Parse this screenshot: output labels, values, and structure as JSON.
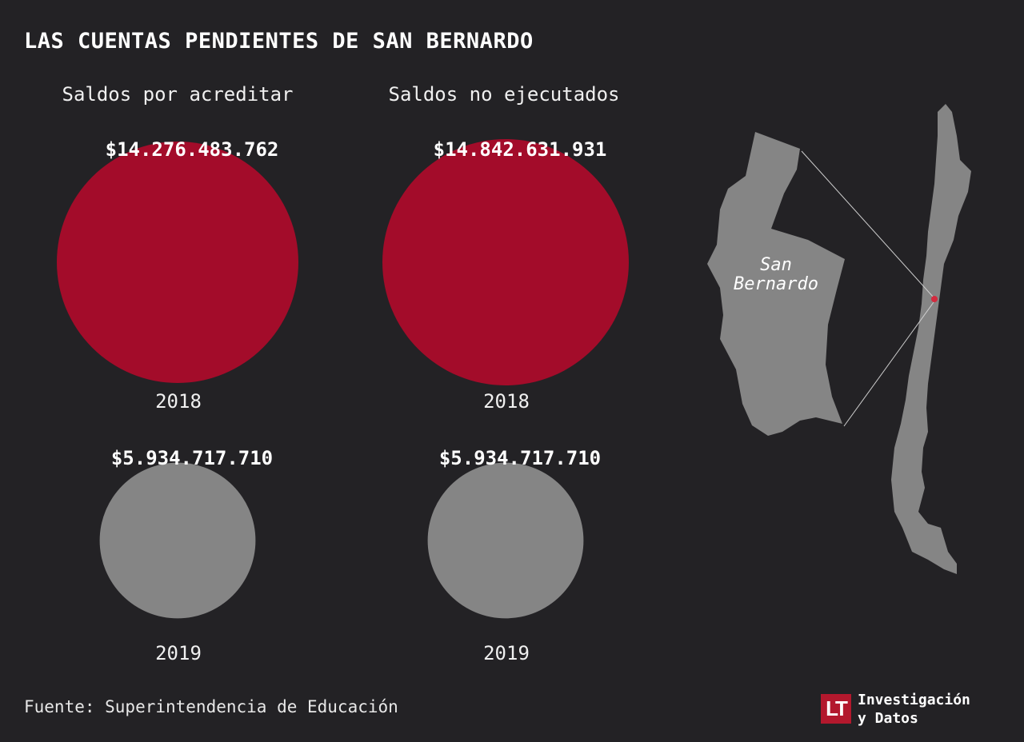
{
  "title": "LAS CUENTAS PENDIENTES DE SAN BERNARDO",
  "source": "Fuente: Superintendencia de Educación",
  "brand": {
    "logo_text": "LT",
    "line1": "Investigación",
    "line2": "y Datos",
    "color": "#b3182d"
  },
  "map": {
    "label_line1": "San",
    "label_line2": "Bernardo",
    "fill": "#858585",
    "marker_color": "#d32a3e"
  },
  "chart_data": {
    "type": "bubble",
    "title": "LAS CUENTAS PENDIENTES DE SAN BERNARDO",
    "panels": [
      {
        "heading": "Saldos por acreditar",
        "points": [
          {
            "year": "2018",
            "value": 14276483762,
            "label": "$14.276.483.762",
            "color": "#a30c2a"
          },
          {
            "year": "2019",
            "value": 5934717710,
            "label": "$5.934.717.710",
            "color": "#858585"
          }
        ]
      },
      {
        "heading": "Saldos no ejecutados",
        "points": [
          {
            "year": "2018",
            "value": 14842631931,
            "label": "$14.842.631.931",
            "color": "#a30c2a"
          },
          {
            "year": "2019",
            "value": 5934717710,
            "label": "$5.934.717.710",
            "color": "#858585"
          }
        ]
      }
    ]
  }
}
